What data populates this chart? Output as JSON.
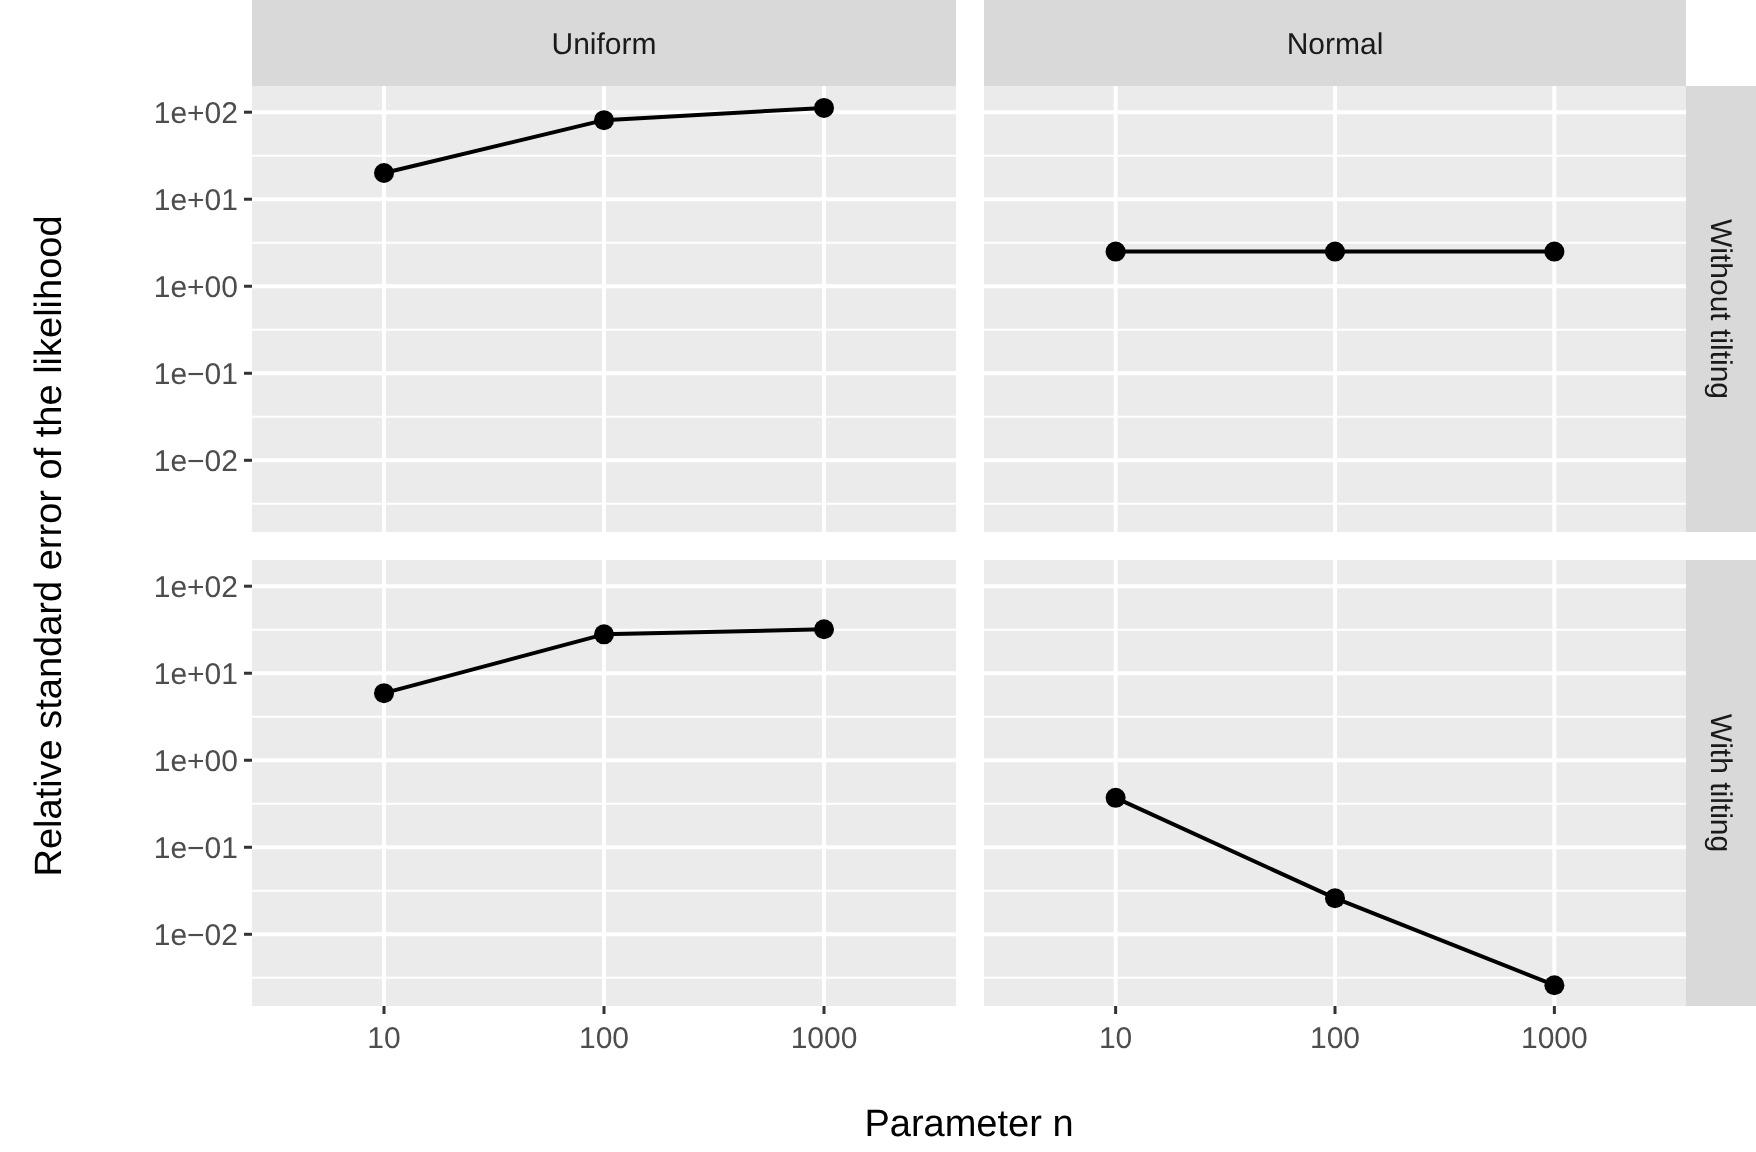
{
  "chart_data": [
    {
      "type": "line",
      "title": "Uniform",
      "ylabel": "Relative standard error of the likelihood",
      "categories": [
        "10",
        "100",
        "1000"
      ],
      "series": [
        {
          "color": "#000000",
          "values": [
            20,
            81,
            112
          ]
        }
      ],
      "log": "y",
      "ylim": [
        0.0015,
        200
      ],
      "yticks": [
        {
          "value": 100,
          "label": "1e+02"
        },
        {
          "value": 10,
          "label": "1e+01"
        },
        {
          "value": 1,
          "label": "1e+00"
        },
        {
          "value": 0.1,
          "label": "1e−01"
        },
        {
          "value": 0.01,
          "label": "1e−02"
        }
      ],
      "grid": true,
      "marker": "circle",
      "line_style": "solid",
      "tick_labels": "y"
    },
    {
      "type": "line",
      "title": "Normal",
      "y2label": "Without tilting",
      "categories": [
        "10",
        "100",
        "1000"
      ],
      "series": [
        {
          "color": "#000000",
          "values": [
            2.5,
            2.5,
            2.5
          ]
        }
      ],
      "log": "y",
      "ylim": [
        0.0015,
        200
      ],
      "yticks": [
        100,
        10,
        1,
        0.1,
        0.01
      ],
      "grid": true,
      "marker": "circle",
      "line_style": "solid",
      "tick_labels": false
    },
    {
      "type": "line",
      "xlabel": "Parameter n",
      "categories": [
        "10",
        "100",
        "1000"
      ],
      "series": [
        {
          "color": "#000000",
          "values": [
            5.9,
            28,
            32
          ]
        }
      ],
      "log": "y",
      "ylim": [
        0.0015,
        200
      ],
      "yticks": [
        {
          "value": 100,
          "label": "1e+02"
        },
        {
          "value": 10,
          "label": "1e+01"
        },
        {
          "value": 1,
          "label": "1e+00"
        },
        {
          "value": 0.1,
          "label": "1e−01"
        },
        {
          "value": 0.01,
          "label": "1e−02"
        }
      ],
      "grid": true,
      "marker": "circle",
      "line_style": "solid"
    },
    {
      "type": "line",
      "y2label": "With tilting",
      "categories": [
        "10",
        "100",
        "1000"
      ],
      "series": [
        {
          "color": "#000000",
          "values": [
            0.37,
            0.026,
            0.0026
          ]
        }
      ],
      "log": "y",
      "ylim": [
        0.0015,
        200
      ],
      "yticks": [
        100,
        10,
        1,
        0.1,
        0.01
      ],
      "grid": true,
      "marker": "circle",
      "line_style": "solid",
      "tick_labels": "x"
    }
  ]
}
